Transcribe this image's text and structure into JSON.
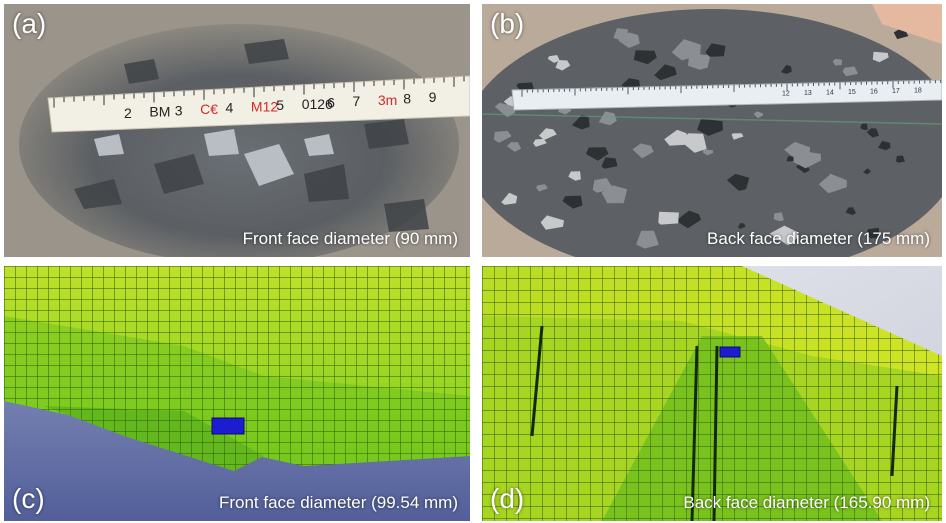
{
  "panels": [
    {
      "id": "a",
      "label": "(a)",
      "caption": "Front face diameter (90 mm)"
    },
    {
      "id": "b",
      "label": "(b)",
      "caption": "Back face diameter (175 mm)"
    },
    {
      "id": "c",
      "label": "(c)",
      "caption": "Front face diameter (99.54 mm)"
    },
    {
      "id": "d",
      "label": "(d)",
      "caption": "Back face diameter (165.90 mm)"
    }
  ],
  "ruler_a": {
    "marks": [
      "2",
      "BM",
      "3",
      "C€",
      "4",
      "M12",
      "5",
      "0126",
      "6",
      "7",
      "3m",
      "8",
      "9"
    ]
  },
  "ruler_b": {
    "marks": [
      "12",
      "13",
      "14",
      "15",
      "16",
      "17",
      "18"
    ]
  },
  "colors": {
    "mesh_green": "#7ccf1c",
    "mesh_yellow": "#c8e01a",
    "mesh_dark": "#3f8a10",
    "mesh_element": "#1c1cd0",
    "background_blue": "#5e6ea8"
  }
}
